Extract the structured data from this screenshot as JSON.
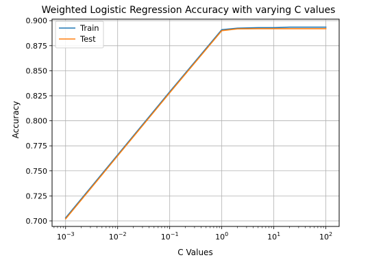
{
  "chart_data": {
    "type": "line",
    "title": "Weighted Logistic Regression Accuracy with varying C values",
    "xlabel": "C Values",
    "ylabel": "Accuracy",
    "x_scale": "log",
    "x": [
      0.001,
      0.01,
      0.1,
      1,
      2,
      5,
      10,
      20,
      50,
      100
    ],
    "xticks": [
      0.001,
      0.01,
      0.1,
      1,
      10,
      100
    ],
    "xtick_labels": [
      {
        "base": "10",
        "exp": "−3"
      },
      {
        "base": "10",
        "exp": "−2"
      },
      {
        "base": "10",
        "exp": "−1"
      },
      {
        "base": "10",
        "exp": "0"
      },
      {
        "base": "10",
        "exp": "1"
      },
      {
        "base": "10",
        "exp": "2"
      }
    ],
    "xlim": [
      0.00055,
      180
    ],
    "ylim": [
      0.6945,
      0.9015
    ],
    "yticks": [
      0.7,
      0.725,
      0.75,
      0.775,
      0.8,
      0.825,
      0.85,
      0.875,
      0.9
    ],
    "ytick_labels": [
      "0.700",
      "0.725",
      "0.750",
      "0.775",
      "0.800",
      "0.825",
      "0.850",
      "0.875",
      "0.900"
    ],
    "grid": true,
    "legend_position": "upper-left",
    "series": [
      {
        "name": "Train",
        "color": "#1f77b4",
        "values": [
          0.703,
          0.766,
          0.829,
          0.891,
          0.8925,
          0.893,
          0.893,
          0.8935,
          0.8935,
          0.8935
        ]
      },
      {
        "name": "Test",
        "color": "#ff7f0e",
        "values": [
          0.702,
          0.765,
          0.828,
          0.89,
          0.8918,
          0.892,
          0.892,
          0.892,
          0.892,
          0.892
        ]
      }
    ]
  }
}
